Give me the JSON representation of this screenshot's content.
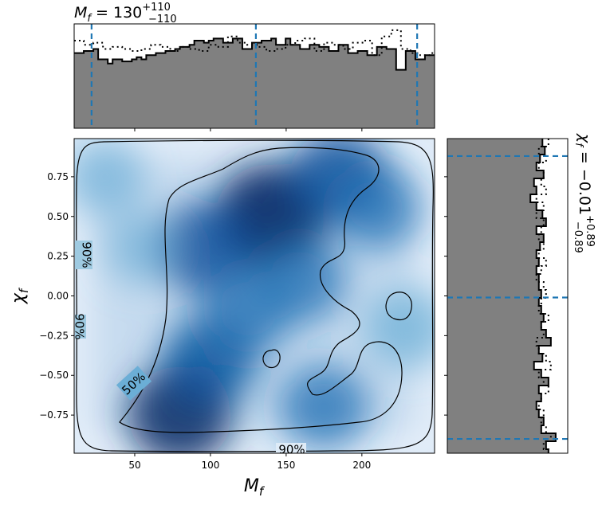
{
  "chart_data": {
    "type": "corner-plot",
    "params": {
      "x": {
        "symbol": "M_f",
        "subscript": "f",
        "xlim": [
          10,
          248
        ]
      },
      "y": {
        "symbol": "χ_f",
        "subscript": "f",
        "ylim": [
          -0.99,
          0.99
        ]
      }
    },
    "top_title": {
      "prefix": "M",
      "sub": "f",
      "eq": " = 130",
      "sup": "+110",
      "low": "−110"
    },
    "right_title": {
      "prefix": "χ",
      "sub": "f",
      "eq": " = −0.01",
      "sup": "+0.89",
      "low": "−0.89"
    },
    "x_ticks": [
      50,
      100,
      150,
      200
    ],
    "y_ticks": [
      {
        "v": 0.75,
        "label": "0.75"
      },
      {
        "v": 0.5,
        "label": "0.50"
      },
      {
        "v": 0.25,
        "label": "0.25"
      },
      {
        "v": 0.0,
        "label": "0.00"
      },
      {
        "v": -0.25,
        "label": "−0.25"
      },
      {
        "v": -0.5,
        "label": "−0.50"
      },
      {
        "v": -0.75,
        "label": "−0.75"
      }
    ],
    "x_axis_label": "M_f",
    "y_axis_label": "χ_f",
    "top_hist_quantiles": [
      21.5,
      130,
      236.5
    ],
    "right_hist_quantiles": [
      0.88,
      -0.01,
      -0.9
    ],
    "top_hist_solid": [
      0.72,
      0.72,
      0.74,
      0.74,
      0.76,
      0.66,
      0.66,
      0.62,
      0.66,
      0.66,
      0.64,
      0.64,
      0.66,
      0.68,
      0.66,
      0.7,
      0.7,
      0.72,
      0.72,
      0.74,
      0.74,
      0.76,
      0.78,
      0.78,
      0.8,
      0.84,
      0.84,
      0.82,
      0.84,
      0.86,
      0.86,
      0.82,
      0.82,
      0.86,
      0.86,
      0.76,
      0.76,
      0.82,
      0.82,
      0.84,
      0.84,
      0.86,
      0.8,
      0.8,
      0.86,
      0.8,
      0.8,
      0.76,
      0.76,
      0.8,
      0.8,
      0.78,
      0.78,
      0.74,
      0.74,
      0.8,
      0.8,
      0.72,
      0.72,
      0.74,
      0.74,
      0.7,
      0.7,
      0.78,
      0.78,
      0.76,
      0.76,
      0.56,
      0.56,
      0.74,
      0.74,
      0.66,
      0.66,
      0.7,
      0.7
    ],
    "top_hist_dotted": [
      0.84,
      0.84,
      0.8,
      0.8,
      0.82,
      0.82,
      0.76,
      0.76,
      0.78,
      0.78,
      0.76,
      0.76,
      0.74,
      0.74,
      0.76,
      0.76,
      0.8,
      0.8,
      0.78,
      0.78,
      0.74,
      0.74,
      0.78,
      0.78,
      0.76,
      0.76,
      0.74,
      0.74,
      0.8,
      0.8,
      0.78,
      0.78,
      0.88,
      0.88,
      0.82,
      0.82,
      0.8,
      0.8,
      0.78,
      0.78,
      0.74,
      0.74,
      0.76,
      0.76,
      0.8,
      0.8,
      0.84,
      0.84,
      0.86,
      0.86,
      0.74,
      0.74,
      0.82,
      0.82,
      0.8,
      0.8,
      0.76,
      0.76,
      0.82,
      0.82,
      0.84,
      0.84,
      0.7,
      0.7,
      0.88,
      0.88,
      0.94,
      0.94,
      0.76,
      0.76,
      0.72,
      0.72,
      0.7,
      0.7,
      0.72
    ],
    "right_hist_solid": [
      0.79,
      0.79,
      0.81,
      0.81,
      0.77,
      0.77,
      0.74,
      0.74,
      0.8,
      0.8,
      0.72,
      0.72,
      0.74,
      0.74,
      0.69,
      0.69,
      0.74,
      0.74,
      0.79,
      0.79,
      0.82,
      0.82,
      0.74,
      0.74,
      0.8,
      0.8,
      0.77,
      0.77,
      0.74,
      0.74,
      0.76,
      0.76,
      0.74,
      0.74,
      0.76,
      0.76,
      0.76,
      0.76,
      0.78,
      0.78,
      0.76,
      0.76,
      0.78,
      0.78,
      0.8,
      0.8,
      0.78,
      0.78,
      0.82,
      0.82,
      0.86,
      0.86,
      0.76,
      0.76,
      0.79,
      0.79,
      0.72,
      0.72,
      0.78,
      0.78,
      0.84,
      0.84,
      0.76,
      0.76,
      0.78,
      0.78,
      0.74,
      0.74,
      0.76,
      0.76,
      0.8,
      0.8,
      0.78,
      0.78,
      0.9,
      0.9,
      0.82,
      0.82,
      0.84
    ],
    "right_hist_dotted": [
      0.84,
      0.84,
      0.76,
      0.76,
      0.82,
      0.82,
      0.76,
      0.76,
      0.8,
      0.8,
      0.78,
      0.78,
      0.82,
      0.82,
      0.74,
      0.74,
      0.8,
      0.8,
      0.74,
      0.74,
      0.8,
      0.8,
      0.78,
      0.78,
      0.76,
      0.76,
      0.8,
      0.8,
      0.76,
      0.76,
      0.82,
      0.82,
      0.78,
      0.78,
      0.74,
      0.74,
      0.8,
      0.8,
      0.82,
      0.82,
      0.78,
      0.78,
      0.76,
      0.76,
      0.84,
      0.84,
      0.78,
      0.78,
      0.8,
      0.8,
      0.74,
      0.74,
      0.76,
      0.76,
      0.82,
      0.82,
      0.86,
      0.86,
      0.76,
      0.76,
      0.8,
      0.8,
      0.84,
      0.84,
      0.78,
      0.78,
      0.76,
      0.76,
      0.8,
      0.8,
      0.78,
      0.78,
      0.82,
      0.82,
      0.86,
      0.86,
      0.8,
      0.8,
      0.84
    ],
    "kde_peaks": [
      {
        "x": 140,
        "y": 0.5,
        "w": 1.0
      },
      {
        "x": 95,
        "y": 0.3,
        "w": 0.7
      },
      {
        "x": 80,
        "y": -0.75,
        "w": 0.85
      },
      {
        "x": 100,
        "y": -0.4,
        "w": 0.65
      },
      {
        "x": 185,
        "y": 0.75,
        "w": 0.75
      },
      {
        "x": 210,
        "y": 0.55,
        "w": 0.5
      },
      {
        "x": 230,
        "y": -0.2,
        "w": 0.45
      },
      {
        "x": 175,
        "y": -0.7,
        "w": 0.55
      },
      {
        "x": 160,
        "y": 0.1,
        "w": 0.55
      },
      {
        "x": 125,
        "y": -0.1,
        "w": 0.55
      },
      {
        "x": 30,
        "y": 0.75,
        "w": 0.35
      },
      {
        "x": 55,
        "y": 0.3,
        "w": 0.25
      }
    ],
    "contour_labels": [
      "90%",
      "90%",
      "50%",
      "90%"
    ],
    "colors": {
      "hist_fill": "#808080",
      "quantile_line": "#1f77b4",
      "kde_dark": "#08306b",
      "kde_light": "#deebf7"
    }
  }
}
